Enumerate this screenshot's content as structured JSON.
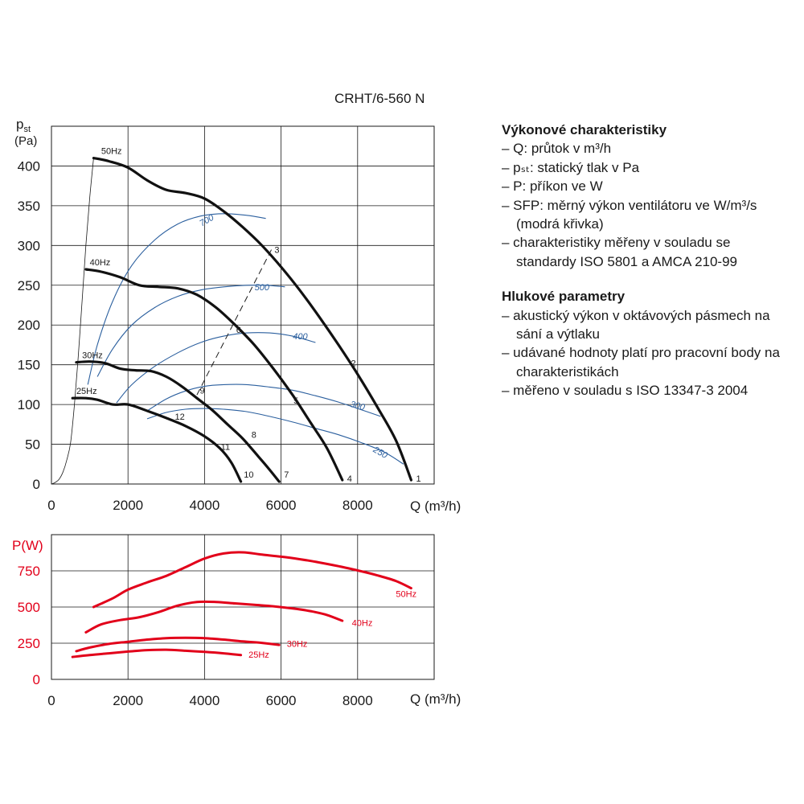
{
  "chart_data": [
    {
      "type": "line",
      "title": "CRHT/6-560 N",
      "ylabel_main": "p",
      "ylabel_sub": "st",
      "ylabel_unit": "(Pa)",
      "xlabel": "Q (m³/h)",
      "xlim": [
        0,
        10000
      ],
      "ylim": [
        0,
        450
      ],
      "x_ticks": [
        "0",
        "2000",
        "4000",
        "6000",
        "8000"
      ],
      "y_ticks": [
        "0",
        "50",
        "100",
        "150",
        "200",
        "250",
        "300",
        "350",
        "400"
      ],
      "grid": true,
      "series": [
        {
          "name": "50Hz",
          "x": [
            1100,
            1500,
            2000,
            2500,
            3000,
            3500,
            4000,
            4500,
            5000,
            5500,
            6000,
            6500,
            7000,
            7500,
            8000,
            8500,
            9000,
            9400
          ],
          "y": [
            410,
            406,
            398,
            382,
            370,
            366,
            359,
            343,
            323,
            300,
            273,
            243,
            210,
            175,
            138,
            98,
            55,
            5
          ]
        },
        {
          "name": "40Hz",
          "x": [
            900,
            1300,
            1800,
            2300,
            2800,
            3300,
            3800,
            4300,
            4800,
            5300,
            5800,
            6300,
            6800,
            7200,
            7600
          ],
          "y": [
            270,
            267,
            260,
            250,
            248,
            246,
            238,
            222,
            200,
            175,
            145,
            112,
            75,
            45,
            5
          ]
        },
        {
          "name": "30Hz",
          "x": [
            650,
            1000,
            1400,
            1800,
            2200,
            2600,
            3000,
            3400,
            3800,
            4200,
            4600,
            5000,
            5400,
            5700,
            5950
          ],
          "y": [
            153,
            154,
            152,
            145,
            143,
            142,
            135,
            123,
            108,
            93,
            75,
            57,
            35,
            18,
            3
          ]
        },
        {
          "name": "25Hz",
          "x": [
            550,
            900,
            1200,
            1600,
            2000,
            2500,
            3000,
            3500,
            4000,
            4400,
            4700,
            4950
          ],
          "y": [
            108,
            108,
            106,
            100,
            100,
            92,
            83,
            73,
            60,
            45,
            27,
            3
          ]
        }
      ],
      "sfp_curves": [
        {
          "label": "700",
          "x": [
            950,
            1200,
            1600,
            2100,
            2700,
            3300,
            3900,
            4500,
            5100,
            5600
          ],
          "y": [
            125,
            175,
            230,
            275,
            307,
            327,
            337,
            340,
            338,
            334
          ]
        },
        {
          "label": "500",
          "x": [
            1200,
            1600,
            2100,
            2700,
            3300,
            3900,
            4500,
            5100,
            5600,
            6100
          ],
          "y": [
            135,
            170,
            200,
            222,
            236,
            244,
            248,
            250,
            250,
            248
          ]
        },
        {
          "label": "400",
          "x": [
            1700,
            2100,
            2700,
            3300,
            3900,
            4500,
            5100,
            5700,
            6300,
            6900
          ],
          "y": [
            102,
            125,
            148,
            165,
            178,
            186,
            190,
            190,
            186,
            178
          ]
        },
        {
          "label": "300",
          "x": [
            2500,
            3000,
            3500,
            4000,
            4500,
            5100,
            5700,
            6300,
            6900,
            7500,
            8000,
            8600
          ],
          "y": [
            92,
            107,
            117,
            123,
            125,
            125,
            122,
            118,
            111,
            103,
            95,
            85
          ]
        },
        {
          "label": "250",
          "x": [
            2500,
            3000,
            3500,
            4000,
            4500,
            5100,
            5700,
            6300,
            6900,
            7500,
            8100,
            8700,
            9200
          ],
          "y": [
            82,
            90,
            94,
            95,
            94,
            91,
            85,
            78,
            70,
            62,
            52,
            40,
            25
          ]
        }
      ],
      "system_curve_x": [
        0,
        100,
        200,
        300,
        400,
        500,
        600,
        700,
        800,
        900,
        1000,
        1100
      ],
      "system_curve_y": [
        0,
        2,
        6,
        15,
        30,
        52,
        100,
        160,
        230,
        300,
        360,
        410
      ],
      "dashed_line": {
        "x": [
          3800,
          5750
        ],
        "y": [
          112,
          295
        ]
      },
      "points": [
        {
          "label": "1",
          "x": 9400,
          "y": 5
        },
        {
          "label": "2",
          "x": 7700,
          "y": 150
        },
        {
          "label": "3",
          "x": 5700,
          "y": 293
        },
        {
          "label": "4",
          "x": 7600,
          "y": 5
        },
        {
          "label": "5",
          "x": 6200,
          "y": 103
        },
        {
          "label": "6",
          "x": 4700,
          "y": 192
        },
        {
          "label": "7",
          "x": 5950,
          "y": 10
        },
        {
          "label": "8",
          "x": 5100,
          "y": 60
        },
        {
          "label": "9",
          "x": 3750,
          "y": 116
        },
        {
          "label": "10",
          "x": 4900,
          "y": 10
        },
        {
          "label": "11",
          "x": 4300,
          "y": 45
        },
        {
          "label": "12",
          "x": 3100,
          "y": 83
        }
      ],
      "series_labels": [
        "50Hz",
        "40Hz",
        "30Hz",
        "25Hz"
      ],
      "sfp_labels": [
        "700",
        "500",
        "400",
        "300",
        "250"
      ]
    },
    {
      "type": "line",
      "ylabel": "P(W)",
      "xlabel": "Q (m³/h)",
      "xlim": [
        0,
        10000
      ],
      "ylim": [
        0,
        1000
      ],
      "x_ticks": [
        "0",
        "2000",
        "4000",
        "6000",
        "8000"
      ],
      "y_ticks": [
        "0",
        "250",
        "500",
        "750"
      ],
      "grid": true,
      "series": [
        {
          "name": "50Hz",
          "x": [
            1100,
            1600,
            2000,
            2500,
            3000,
            3500,
            4000,
            4500,
            5000,
            5500,
            6000,
            6500,
            7000,
            7500,
            8000,
            8500,
            9000,
            9400
          ],
          "y": [
            500,
            560,
            620,
            670,
            715,
            775,
            835,
            870,
            878,
            862,
            848,
            830,
            808,
            782,
            753,
            720,
            680,
            630
          ]
        },
        {
          "name": "40Hz",
          "x": [
            900,
            1300,
            1800,
            2300,
            2800,
            3300,
            3800,
            4300,
            4800,
            5300,
            5800,
            6300,
            6800,
            7200,
            7600
          ],
          "y": [
            325,
            380,
            410,
            430,
            465,
            510,
            535,
            535,
            525,
            515,
            505,
            490,
            470,
            445,
            405
          ]
        },
        {
          "name": "30Hz",
          "x": [
            650,
            1000,
            1500,
            2000,
            2500,
            3000,
            3500,
            4000,
            4500,
            5000,
            5500,
            5950
          ],
          "y": [
            195,
            220,
            245,
            260,
            275,
            285,
            288,
            285,
            275,
            262,
            252,
            238
          ]
        },
        {
          "name": "25Hz",
          "x": [
            550,
            1000,
            1500,
            2000,
            2500,
            3000,
            3500,
            4000,
            4500,
            4950
          ],
          "y": [
            155,
            168,
            180,
            192,
            202,
            205,
            198,
            190,
            180,
            168
          ]
        }
      ]
    }
  ],
  "description": {
    "section1_title": "Výkonové charakteristiky",
    "section1_items": [
      "– Q: průtok v m³/h",
      "– pₛₜ: statický tlak v Pa",
      "– P: příkon ve W",
      "– SFP: měrný výkon ventilátoru ve W/m³/s (modrá křivka)",
      "– charakteristiky měřeny v souladu se standardy ISO 5801 a AMCA 210-99"
    ],
    "section2_title": "Hlukové parametry",
    "section2_items": [
      "– akustický výkon v oktávových pásmech na sání a výtlaku",
      "– udávané hodnoty platí pro pracovní body na charakteristikách",
      "– měřeno v souladu s ISO 13347-3 2004"
    ]
  },
  "colors": {
    "fan": "#111111",
    "sfp": "#2b5f9e",
    "power": "#e2001a"
  }
}
